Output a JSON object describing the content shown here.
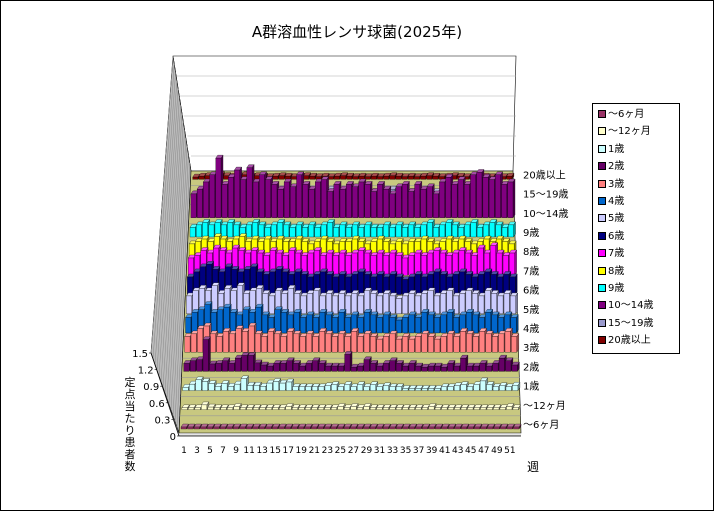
{
  "chart_data": {
    "type": "bar",
    "subtype": "3d-bar",
    "title": "A群溶血性レンサ球菌(2025年)",
    "xlabel": "週",
    "ylabel": "定点当たり患者数",
    "ylim": [
      0,
      1.5
    ],
    "yticks": [
      "0",
      "0.3",
      "0.6",
      "0.9",
      "1.2",
      "1.5"
    ],
    "xticks": [
      "1",
      "3",
      "5",
      "7",
      "9",
      "11",
      "13",
      "15",
      "17",
      "19",
      "21",
      "23",
      "25",
      "27",
      "29",
      "31",
      "33",
      "35",
      "37",
      "39",
      "41",
      "43",
      "45",
      "47",
      "49",
      "51"
    ],
    "legend_position": "right",
    "series": [
      {
        "name": "～6ヶ月",
        "color": "#993366",
        "values": [
          0.01,
          0.01,
          0.01,
          0.01,
          0.01,
          0.01,
          0.01,
          0.01,
          0.01,
          0.01,
          0.01,
          0.01,
          0.01,
          0.01,
          0.01,
          0.01,
          0.01,
          0.01,
          0.01,
          0.01,
          0.01,
          0.01,
          0.01,
          0.01,
          0.01,
          0.01,
          0.01,
          0.01,
          0.01,
          0.01,
          0.01,
          0.01,
          0.01,
          0.01,
          0.01,
          0.01,
          0.01,
          0.01,
          0.01,
          0.01,
          0.01,
          0.01,
          0.01,
          0.01,
          0.01,
          0.01,
          0.01,
          0.01,
          0.01,
          0.01,
          0.01,
          0.01
        ]
      },
      {
        "name": "～12ヶ月",
        "color": "#FFFFCC",
        "values": [
          0.03,
          0.03,
          0.03,
          0.09,
          0.05,
          0.03,
          0.03,
          0.03,
          0.06,
          0.03,
          0.03,
          0.03,
          0.03,
          0.03,
          0.03,
          0.03,
          0.06,
          0.03,
          0.03,
          0.03,
          0.03,
          0.03,
          0.03,
          0.03,
          0.06,
          0.03,
          0.06,
          0.03,
          0.06,
          0.03,
          0.03,
          0.03,
          0.03,
          0.03,
          0.03,
          0.03,
          0.03,
          0.03,
          0.06,
          0.03,
          0.03,
          0.03,
          0.03,
          0.03,
          0.03,
          0.03,
          0.03,
          0.03,
          0.03,
          0.03,
          0.06,
          0.03
        ]
      },
      {
        "name": "1歳",
        "color": "#CCFFFF",
        "values": [
          0.06,
          0.12,
          0.2,
          0.17,
          0.13,
          0.08,
          0.13,
          0.08,
          0.12,
          0.22,
          0.1,
          0.1,
          0.08,
          0.14,
          0.17,
          0.14,
          0.16,
          0.07,
          0.07,
          0.07,
          0.07,
          0.07,
          0.09,
          0.11,
          0.07,
          0.11,
          0.07,
          0.11,
          0.07,
          0.11,
          0.07,
          0.09,
          0.07,
          0.07,
          0.04,
          0.04,
          0.04,
          0.04,
          0.04,
          0.04,
          0.07,
          0.07,
          0.09,
          0.11,
          0.07,
          0.11,
          0.18,
          0.11,
          0.07,
          0.09,
          0.07,
          0.1
        ]
      },
      {
        "name": "2歳",
        "color": "#660066",
        "values": [
          0.15,
          0.2,
          0.22,
          0.6,
          0.14,
          0.15,
          0.2,
          0.15,
          0.25,
          0.3,
          0.3,
          0.16,
          0.12,
          0.1,
          0.15,
          0.15,
          0.2,
          0.15,
          0.1,
          0.15,
          0.2,
          0.15,
          0.1,
          0.1,
          0.1,
          0.32,
          0.08,
          0.1,
          0.22,
          0.15,
          0.1,
          0.15,
          0.2,
          0.15,
          0.1,
          0.15,
          0.1,
          0.08,
          0.1,
          0.1,
          0.08,
          0.15,
          0.1,
          0.25,
          0.1,
          0.1,
          0.15,
          0.1,
          0.15,
          0.25,
          0.2,
          0.12
        ]
      },
      {
        "name": "3歳",
        "color": "#FF8080",
        "values": [
          0.3,
          0.35,
          0.45,
          0.5,
          0.35,
          0.3,
          0.4,
          0.35,
          0.45,
          0.4,
          0.5,
          0.35,
          0.3,
          0.4,
          0.35,
          0.3,
          0.4,
          0.35,
          0.3,
          0.35,
          0.3,
          0.4,
          0.35,
          0.3,
          0.35,
          0.3,
          0.4,
          0.3,
          0.35,
          0.3,
          0.25,
          0.3,
          0.35,
          0.25,
          0.3,
          0.25,
          0.3,
          0.35,
          0.3,
          0.25,
          0.3,
          0.35,
          0.3,
          0.4,
          0.35,
          0.3,
          0.4,
          0.35,
          0.3,
          0.35,
          0.4,
          0.3
        ]
      },
      {
        "name": "4歳",
        "color": "#0066CC",
        "values": [
          0.3,
          0.4,
          0.45,
          0.55,
          0.4,
          0.45,
          0.5,
          0.4,
          0.35,
          0.45,
          0.4,
          0.5,
          0.35,
          0.3,
          0.45,
          0.4,
          0.35,
          0.4,
          0.3,
          0.35,
          0.3,
          0.4,
          0.35,
          0.3,
          0.4,
          0.3,
          0.35,
          0.3,
          0.4,
          0.35,
          0.3,
          0.35,
          0.3,
          0.25,
          0.3,
          0.35,
          0.3,
          0.4,
          0.35,
          0.3,
          0.35,
          0.4,
          0.3,
          0.35,
          0.4,
          0.35,
          0.3,
          0.4,
          0.35,
          0.3,
          0.35,
          0.3
        ]
      },
      {
        "name": "5歳",
        "color": "#CCCCFF",
        "values": [
          0.35,
          0.45,
          0.5,
          0.45,
          0.55,
          0.4,
          0.5,
          0.45,
          0.55,
          0.4,
          0.45,
          0.5,
          0.4,
          0.35,
          0.45,
          0.4,
          0.5,
          0.4,
          0.35,
          0.4,
          0.45,
          0.35,
          0.4,
          0.35,
          0.4,
          0.35,
          0.4,
          0.35,
          0.45,
          0.4,
          0.35,
          0.4,
          0.35,
          0.3,
          0.35,
          0.4,
          0.35,
          0.4,
          0.45,
          0.35,
          0.4,
          0.45,
          0.35,
          0.4,
          0.45,
          0.4,
          0.35,
          0.45,
          0.4,
          0.35,
          0.4,
          0.35
        ]
      },
      {
        "name": "6歳",
        "color": "#000080",
        "values": [
          0.35,
          0.45,
          0.55,
          0.6,
          0.5,
          0.45,
          0.55,
          0.5,
          0.45,
          0.5,
          0.55,
          0.45,
          0.4,
          0.45,
          0.5,
          0.45,
          0.4,
          0.45,
          0.4,
          0.35,
          0.4,
          0.45,
          0.4,
          0.35,
          0.4,
          0.35,
          0.4,
          0.45,
          0.4,
          0.35,
          0.4,
          0.35,
          0.4,
          0.35,
          0.3,
          0.35,
          0.4,
          0.35,
          0.4,
          0.45,
          0.4,
          0.35,
          0.4,
          0.45,
          0.4,
          0.35,
          0.4,
          0.45,
          0.4,
          0.35,
          0.4,
          0.35
        ]
      },
      {
        "name": "7歳",
        "color": "#FF00FF",
        "values": [
          0.35,
          0.4,
          0.5,
          0.45,
          0.55,
          0.5,
          0.45,
          0.55,
          0.5,
          0.45,
          0.5,
          0.45,
          0.4,
          0.5,
          0.45,
          0.4,
          0.5,
          0.45,
          0.4,
          0.45,
          0.5,
          0.4,
          0.45,
          0.4,
          0.45,
          0.4,
          0.45,
          0.5,
          0.45,
          0.4,
          0.45,
          0.4,
          0.45,
          0.4,
          0.35,
          0.4,
          0.45,
          0.4,
          0.45,
          0.5,
          0.45,
          0.4,
          0.45,
          0.5,
          0.45,
          0.4,
          0.55,
          0.45,
          0.6,
          0.45,
          0.4,
          0.45
        ]
      },
      {
        "name": "8歳",
        "color": "#FFFF00",
        "values": [
          0.25,
          0.3,
          0.35,
          0.3,
          0.4,
          0.35,
          0.3,
          0.35,
          0.4,
          0.3,
          0.35,
          0.3,
          0.35,
          0.3,
          0.35,
          0.3,
          0.3,
          0.35,
          0.3,
          0.25,
          0.3,
          0.35,
          0.3,
          0.25,
          0.3,
          0.3,
          0.35,
          0.3,
          0.25,
          0.3,
          0.35,
          0.3,
          0.25,
          0.3,
          0.25,
          0.3,
          0.3,
          0.35,
          0.3,
          0.25,
          0.3,
          0.35,
          0.3,
          0.35,
          0.3,
          0.25,
          0.3,
          0.35,
          0.3,
          0.35,
          0.3,
          0.25
        ]
      },
      {
        "name": "9歳",
        "color": "#00FFFF",
        "values": [
          0.2,
          0.25,
          0.3,
          0.25,
          0.3,
          0.25,
          0.3,
          0.25,
          0.2,
          0.25,
          0.3,
          0.25,
          0.2,
          0.25,
          0.3,
          0.25,
          0.2,
          0.25,
          0.2,
          0.25,
          0.2,
          0.25,
          0.3,
          0.2,
          0.25,
          0.2,
          0.25,
          0.2,
          0.25,
          0.2,
          0.2,
          0.25,
          0.2,
          0.25,
          0.2,
          0.25,
          0.2,
          0.25,
          0.3,
          0.2,
          0.25,
          0.3,
          0.25,
          0.2,
          0.25,
          0.3,
          0.2,
          0.25,
          0.3,
          0.25,
          0.2,
          0.25
        ]
      },
      {
        "name": "10～14歳",
        "color": "#800080",
        "values": [
          0.5,
          0.6,
          0.75,
          0.9,
          1.25,
          0.7,
          0.85,
          1.0,
          0.8,
          1.05,
          0.75,
          0.9,
          0.8,
          0.7,
          0.6,
          0.75,
          0.65,
          0.9,
          0.7,
          0.6,
          0.75,
          0.8,
          0.55,
          0.7,
          0.6,
          0.7,
          0.65,
          0.75,
          0.7,
          0.55,
          0.7,
          0.6,
          0.5,
          0.65,
          0.7,
          0.55,
          0.7,
          0.6,
          0.65,
          0.5,
          0.75,
          0.85,
          0.7,
          0.8,
          0.7,
          0.9,
          0.95,
          0.85,
          0.8,
          0.9,
          0.7,
          0.75
        ]
      },
      {
        "name": "15～19歳",
        "color": "#9999CC",
        "values": [
          0.1,
          0.15,
          0.2,
          0.15,
          0.25,
          0.2,
          0.15,
          0.2,
          0.15,
          0.2,
          0.25,
          0.15,
          0.2,
          0.15,
          0.2,
          0.15,
          0.1,
          0.15,
          0.2,
          0.15,
          0.1,
          0.15,
          0.2,
          0.15,
          0.1,
          0.15,
          0.2,
          0.15,
          0.1,
          0.15,
          0.1,
          0.15,
          0.2,
          0.15,
          0.1,
          0.15,
          0.1,
          0.15,
          0.2,
          0.15,
          0.1,
          0.15,
          0.2,
          0.15,
          0.1,
          0.15,
          0.2,
          0.15,
          0.2,
          0.15,
          0.1,
          0.15
        ]
      },
      {
        "name": "20歳以上",
        "color": "#800000",
        "values": [
          0.05,
          0.07,
          0.08,
          0.07,
          0.1,
          0.08,
          0.07,
          0.08,
          0.1,
          0.07,
          0.08,
          0.07,
          0.06,
          0.07,
          0.08,
          0.07,
          0.06,
          0.07,
          0.08,
          0.07,
          0.06,
          0.07,
          0.06,
          0.07,
          0.08,
          0.07,
          0.06,
          0.07,
          0.06,
          0.07,
          0.06,
          0.07,
          0.08,
          0.07,
          0.06,
          0.07,
          0.06,
          0.07,
          0.08,
          0.07,
          0.06,
          0.07,
          0.08,
          0.07,
          0.06,
          0.07,
          0.08,
          0.07,
          0.06,
          0.07,
          0.06,
          0.07
        ]
      }
    ]
  }
}
